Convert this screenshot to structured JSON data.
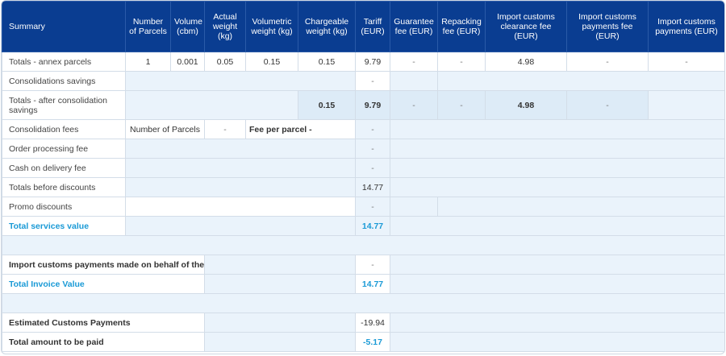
{
  "headers": [
    "Summary",
    "Number of Parcels",
    "Volume (cbm)",
    "Actual weight (kg)",
    "Volumetric weight (kg)",
    "Chargeable weight (kg)",
    "Tariff (EUR)",
    "Guarantee fee (EUR)",
    "Repacking fee (EUR)",
    "Import customs clearance fee (EUR)",
    "Import customs payments fee (EUR)",
    "Import customs payments (EUR)"
  ],
  "rows": {
    "totals_annex": {
      "label": "Totals - annex parcels",
      "parcels": "1",
      "volume": "0.001",
      "actual": "0.05",
      "volumetric": "0.15",
      "chargeable": "0.15",
      "tariff": "9.79",
      "guarantee": "-",
      "repacking": "-",
      "clearance": "4.98",
      "payments_fee": "-",
      "payments": "-"
    },
    "consolidation_savings": {
      "label": "Consolidations savings",
      "tariff": "-"
    },
    "totals_after": {
      "label": "Totals - after consolidation savings",
      "chargeable": "0.15",
      "tariff": "9.79",
      "guarantee": "-",
      "repacking": "-",
      "clearance": "4.98",
      "payments_fee": "-"
    },
    "consolidation_fees": {
      "label": "Consolidation fees",
      "parcels_label": "Number of Parcels",
      "parcels_value": "-",
      "fee_label": "Fee per parcel -",
      "tariff": "-"
    },
    "order_processing": {
      "label": "Order processing fee",
      "tariff": "-"
    },
    "cod": {
      "label": "Cash on delivery fee",
      "tariff": "-"
    },
    "before_discounts": {
      "label": "Totals before discounts",
      "tariff": "14.77"
    },
    "promo": {
      "label": "Promo discounts",
      "tariff": "-"
    },
    "services_value": {
      "label": "Total services value",
      "tariff": "14.77"
    },
    "import_payments": {
      "label": "Import customs payments made on behalf of the client",
      "tariff": "-"
    },
    "invoice_value": {
      "label": "Total Invoice Value",
      "tariff": "14.77"
    },
    "estimated_payments": {
      "label": "Estimated Customs Payments",
      "tariff": "-19.94"
    },
    "amount_to_pay": {
      "label": "Total amount to be paid",
      "tariff": "-5.17"
    }
  }
}
